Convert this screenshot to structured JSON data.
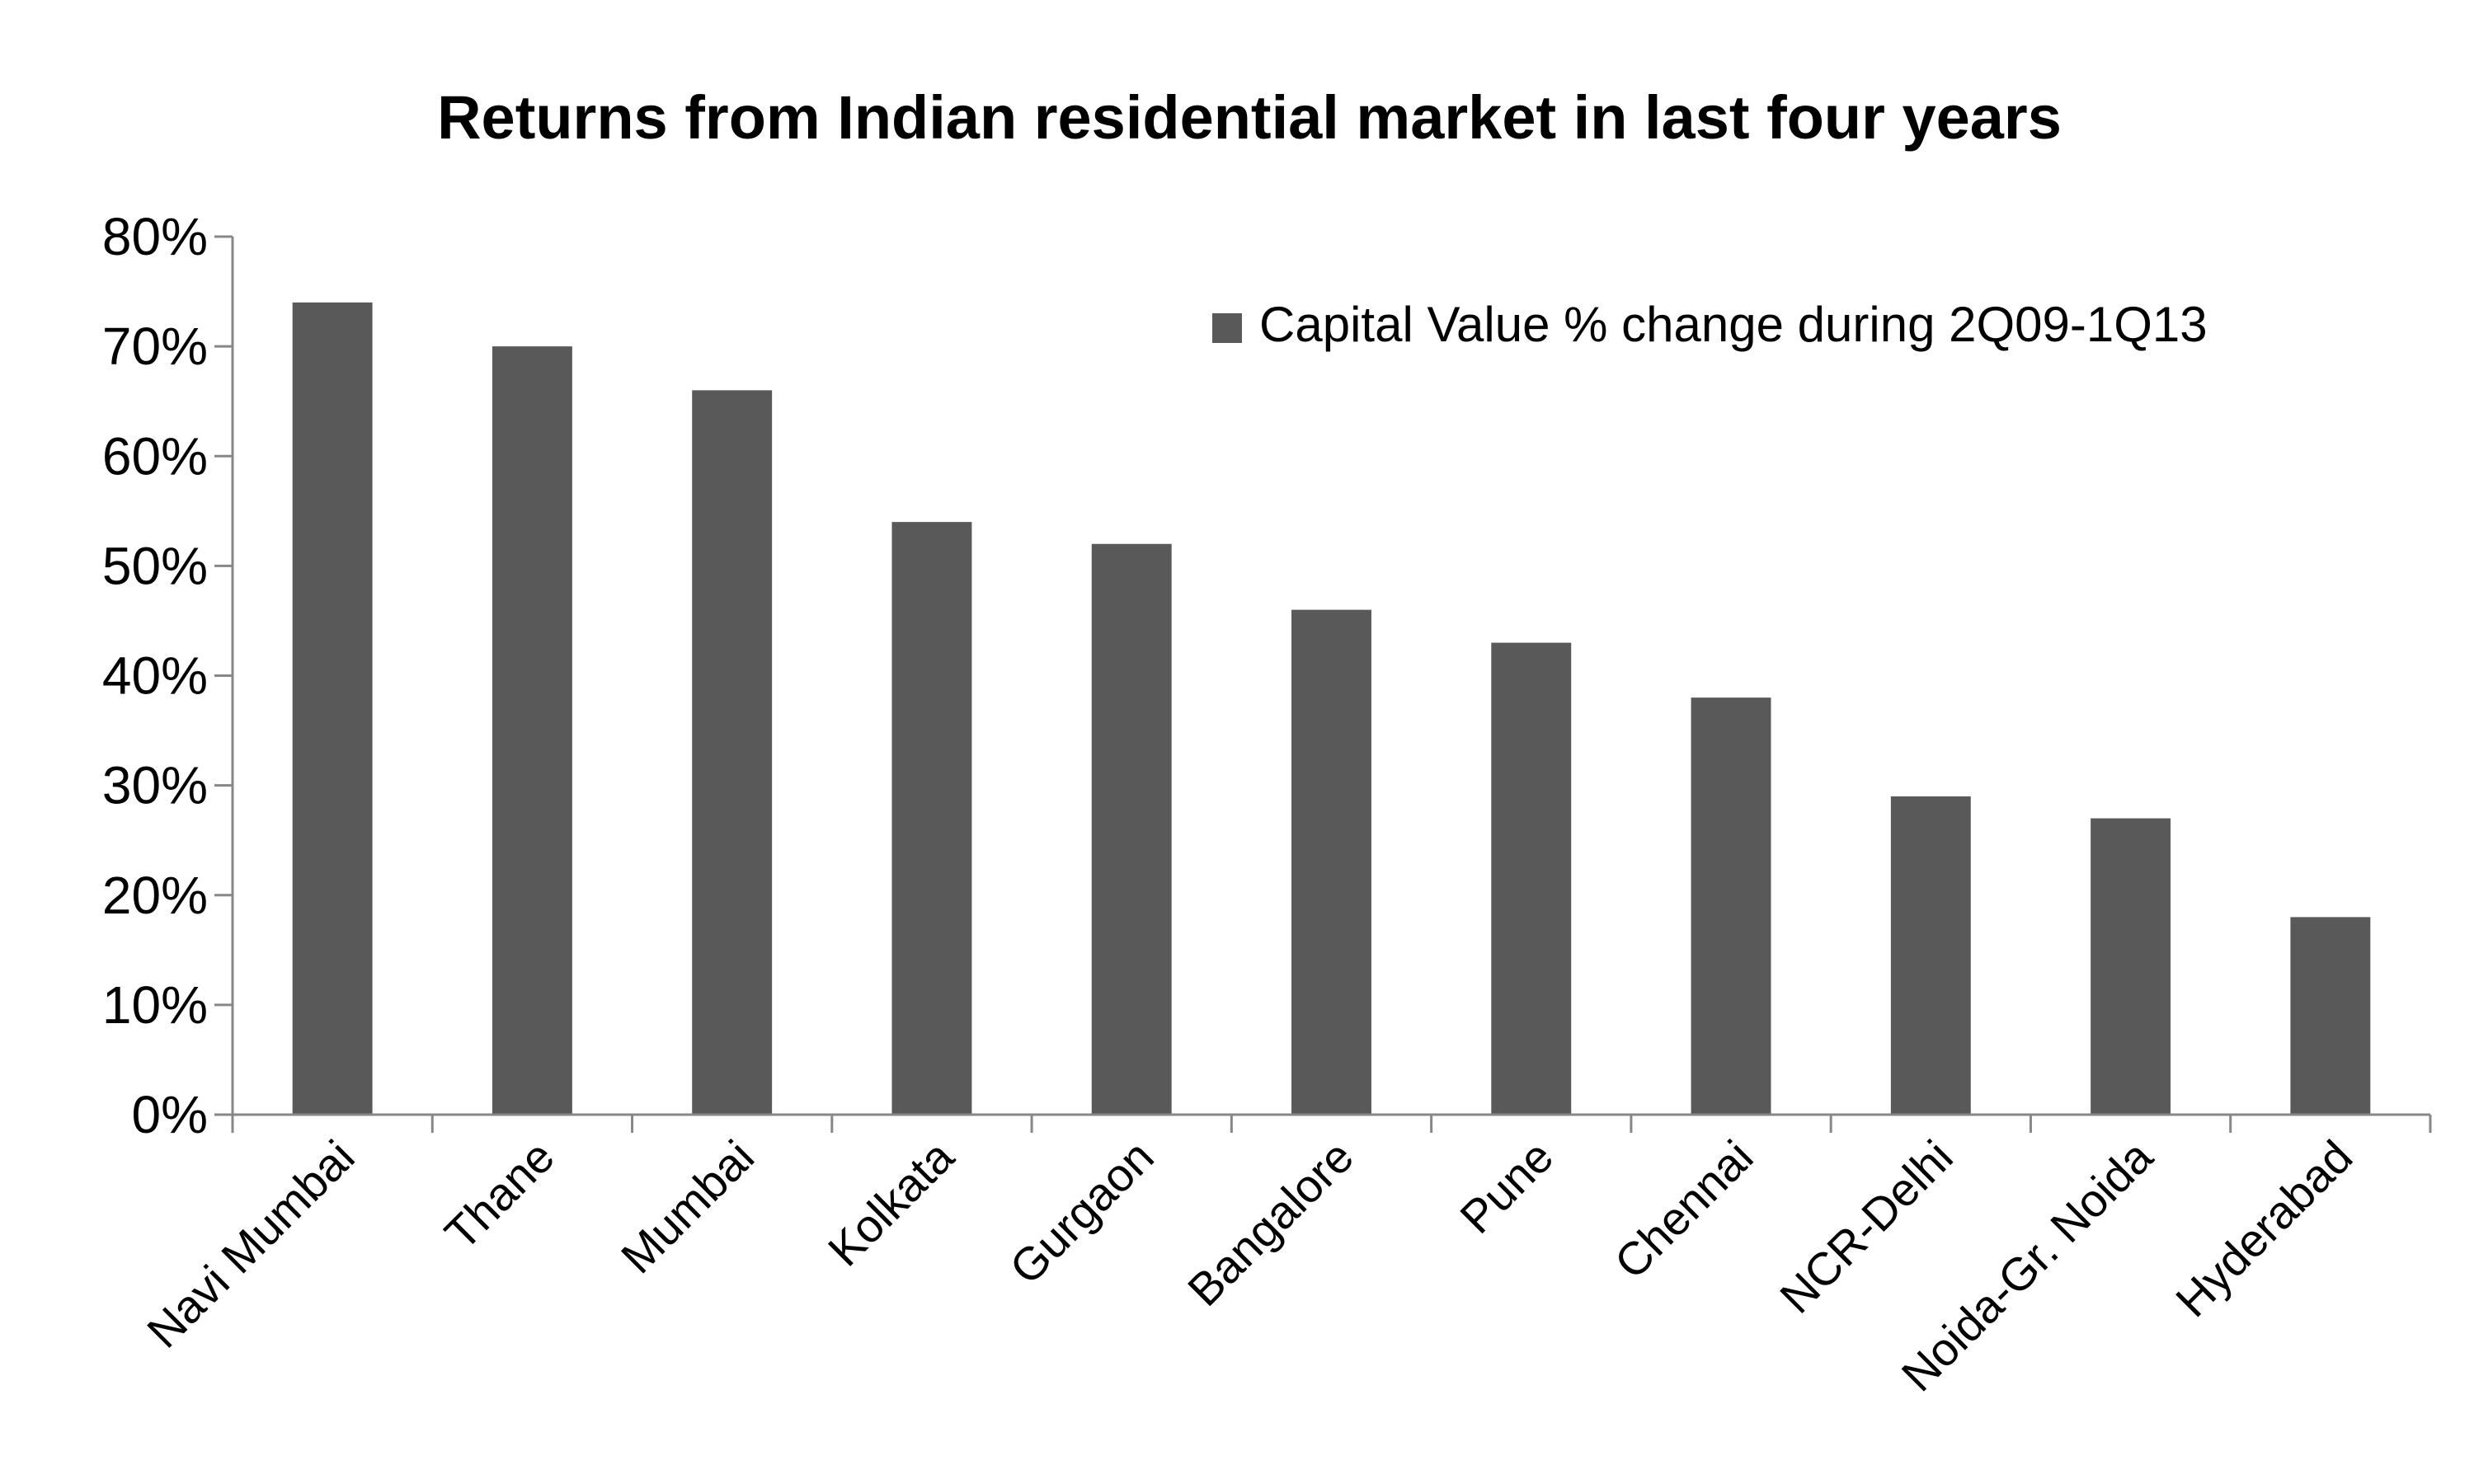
{
  "chart_data": {
    "type": "bar",
    "title": "Returns from Indian residential market in last four years",
    "xlabel": "",
    "ylabel": "",
    "categories": [
      "Navi Mumbai",
      "Thane",
      "Mumbai",
      "Kolkata",
      "Gurgaon",
      "Bangalore",
      "Pune",
      "Chennai",
      "NCR-Delhi",
      "Noida-Gr. Noida",
      "Hyderabad"
    ],
    "series": [
      {
        "name": "Capital Value % change during 2Q09-1Q13",
        "values": [
          74,
          70,
          66,
          54,
          52,
          46,
          43,
          38,
          29,
          27,
          18
        ]
      }
    ],
    "ylim": [
      0,
      80
    ],
    "yticks": [
      0,
      10,
      20,
      30,
      40,
      50,
      60,
      70,
      80
    ],
    "ytick_labels": [
      "0%",
      "10%",
      "20%",
      "30%",
      "40%",
      "50%",
      "60%",
      "70%",
      "80%"
    ],
    "grid": false,
    "legend": "top-right",
    "bar_color": "#595959"
  }
}
